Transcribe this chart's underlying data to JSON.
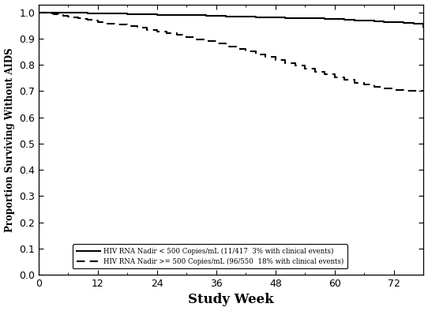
{
  "xlabel": "Study Week",
  "ylabel": "Proportion Surviving Without AIDS",
  "xlim": [
    0,
    78
  ],
  "ylim": [
    0.0,
    1.03
  ],
  "xticks": [
    0,
    12,
    24,
    36,
    48,
    60,
    72
  ],
  "yticks": [
    0.0,
    0.1,
    0.2,
    0.3,
    0.4,
    0.5,
    0.6,
    0.7,
    0.8,
    0.9,
    1.0
  ],
  "line1_label": "HIV RNA Nadir < 500 Copies/mL (11/417  3% with clinical events)",
  "line2_label": "HIV RNA Nadir >= 500 Copies/mL (96/550  18% with clinical events)",
  "line1_color": "#000000",
  "line2_color": "#000000",
  "background_color": "#ffffff",
  "solid_x": [
    0,
    4,
    8,
    10,
    14,
    18,
    22,
    24,
    28,
    30,
    32,
    34,
    38,
    40,
    42,
    44,
    48,
    50,
    54,
    56,
    58,
    60,
    62,
    64,
    66,
    68,
    70,
    72,
    74,
    76,
    78
  ],
  "solid_y": [
    1.0,
    1.0,
    1.0,
    0.996,
    0.996,
    0.994,
    0.994,
    0.991,
    0.991,
    0.989,
    0.989,
    0.988,
    0.985,
    0.985,
    0.984,
    0.982,
    0.981,
    0.979,
    0.979,
    0.977,
    0.976,
    0.974,
    0.972,
    0.97,
    0.968,
    0.966,
    0.964,
    0.962,
    0.958,
    0.956,
    0.945
  ],
  "dashed_x": [
    0,
    1,
    2,
    3,
    4,
    5,
    6,
    7,
    8,
    9,
    10,
    11,
    12,
    14,
    16,
    18,
    20,
    22,
    24,
    26,
    28,
    30,
    32,
    34,
    36,
    38,
    40,
    42,
    44,
    46,
    48,
    50,
    52,
    54,
    56,
    58,
    60,
    62,
    64,
    66,
    68,
    70,
    72,
    74,
    76,
    78
  ],
  "dashed_y": [
    1.0,
    0.998,
    0.996,
    0.994,
    0.99,
    0.987,
    0.984,
    0.981,
    0.978,
    0.975,
    0.972,
    0.968,
    0.963,
    0.957,
    0.952,
    0.946,
    0.94,
    0.933,
    0.927,
    0.92,
    0.913,
    0.905,
    0.897,
    0.889,
    0.88,
    0.87,
    0.86,
    0.85,
    0.84,
    0.829,
    0.818,
    0.807,
    0.796,
    0.784,
    0.774,
    0.763,
    0.752,
    0.742,
    0.732,
    0.724,
    0.716,
    0.71,
    0.704,
    0.7,
    0.7,
    0.7
  ]
}
